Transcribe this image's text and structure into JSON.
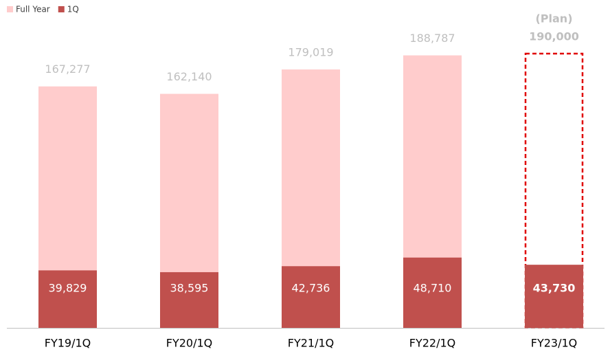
{
  "chart_data": {
    "type": "overlap-bar",
    "categories": [
      "FY19/1Q",
      "FY20/1Q",
      "FY21/1Q",
      "FY22/1Q",
      "FY23/1Q"
    ],
    "series": [
      {
        "name": "Full Year",
        "color": "#ffcccc",
        "values": [
          167277,
          162140,
          179019,
          188787,
          190000
        ],
        "value_labels": [
          "167,277",
          "162,140",
          "179,019",
          "188,787",
          "190,000"
        ]
      },
      {
        "name": "1Q",
        "color": "#c0504d",
        "values": [
          39829,
          38595,
          42736,
          48710,
          43730
        ],
        "value_labels": [
          "39,829",
          "38,595",
          "42,736",
          "48,710",
          "43,730"
        ]
      }
    ],
    "annotation": "(Plan)",
    "ylim": [
      0,
      190000
    ],
    "legend": "top-left"
  }
}
